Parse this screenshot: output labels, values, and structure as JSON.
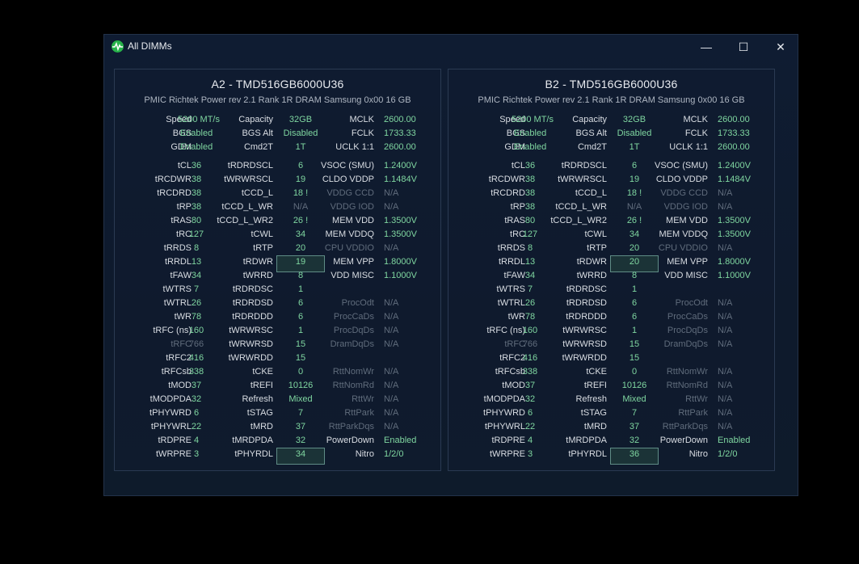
{
  "window": {
    "title": "All DIMMs",
    "minimize": "—",
    "maximize": "☐",
    "close": "✕"
  },
  "panels": [
    {
      "title": "A2  -  TMD516GB6000U36",
      "subtitle": "PMIC Richtek Power rev 2.1    Rank 1R    DRAM Samsung 0x00    16 GB",
      "top": [
        [
          "Speed",
          "5200 MT/s",
          "Capacity",
          "32GB",
          "MCLK",
          "2600.00"
        ],
        [
          "BGS",
          "Enabled",
          "BGS Alt",
          "Disabled",
          "FCLK",
          "1733.33"
        ],
        [
          "GDM",
          "Enabled",
          "Cmd2T",
          "1T",
          "UCLK  1:1",
          "2600.00"
        ]
      ],
      "rows": [
        [
          "tCL",
          "36",
          "tRDRDSCL",
          "6",
          "VSOC (SMU)",
          "1.2400V"
        ],
        [
          "tRCDWR",
          "38",
          "tWRWRSCL",
          "19",
          "CLDO VDDP",
          "1.1484V"
        ],
        [
          "tRCDRD",
          "38",
          "tCCD_L",
          "18 !",
          "VDDG CCD",
          "N/A"
        ],
        [
          "tRP",
          "38",
          "tCCD_L_WR",
          "N/A",
          "VDDG IOD",
          "N/A"
        ],
        [
          "tRAS",
          "80",
          "tCCD_L_WR2",
          "26 !",
          "MEM VDD",
          "1.3500V"
        ],
        [
          "tRC",
          "127",
          "tCWL",
          "34",
          "MEM VDDQ",
          "1.3500V"
        ],
        [
          "tRRDS",
          "8",
          "tRTP",
          "20",
          "CPU VDDIO",
          "N/A"
        ],
        [
          "tRRDL",
          "13",
          "tRDWR",
          "19",
          "MEM VPP",
          "1.8000V"
        ],
        [
          "tFAW",
          "34",
          "tWRRD",
          "8",
          "VDD MISC",
          "1.1000V"
        ],
        [
          "tWTRS",
          "7",
          "tRDRDSC",
          "1",
          "",
          ""
        ],
        [
          "tWTRL",
          "26",
          "tRDRDSD",
          "6",
          "ProcOdt",
          "N/A"
        ],
        [
          "tWR",
          "78",
          "tRDRDDD",
          "6",
          "ProcCaDs",
          "N/A"
        ],
        [
          "tRFC (ns)",
          "160",
          "tWRWRSC",
          "1",
          "ProcDqDs",
          "N/A"
        ],
        [
          "tRFC",
          "766",
          "tWRWRSD",
          "15",
          "DramDqDs",
          "N/A"
        ],
        [
          "tRFC2",
          "416",
          "tWRWRDD",
          "15",
          "",
          ""
        ],
        [
          "tRFCsb",
          "338",
          "tCKE",
          "0",
          "RttNomWr",
          "N/A"
        ],
        [
          "tMOD",
          "37",
          "tREFI",
          "10126",
          "RttNomRd",
          "N/A"
        ],
        [
          "tMODPDA",
          "32",
          "Refresh",
          "Mixed",
          "RttWr",
          "N/A"
        ],
        [
          "tPHYWRD",
          "6",
          "tSTAG",
          "7",
          "RttPark",
          "N/A"
        ],
        [
          "tPHYWRL",
          "22",
          "tMRD",
          "37",
          "RttParkDqs",
          "N/A"
        ],
        [
          "tRDPRE",
          "4",
          "tMRDPDA",
          "32",
          "PowerDown",
          "Enabled"
        ],
        [
          "tWRPRE",
          "3",
          "tPHYRDL",
          "34",
          "Nitro",
          "1/2/0"
        ]
      ]
    },
    {
      "title": "B2  -  TMD516GB6000U36",
      "subtitle": "PMIC Richtek Power rev 2.1    Rank 1R    DRAM Samsung 0x00    16 GB",
      "top": [
        [
          "Speed",
          "5200 MT/s",
          "Capacity",
          "32GB",
          "MCLK",
          "2600.00"
        ],
        [
          "BGS",
          "Enabled",
          "BGS Alt",
          "Disabled",
          "FCLK",
          "1733.33"
        ],
        [
          "GDM",
          "Enabled",
          "Cmd2T",
          "1T",
          "UCLK  1:1",
          "2600.00"
        ]
      ],
      "rows": [
        [
          "tCL",
          "36",
          "tRDRDSCL",
          "6",
          "VSOC (SMU)",
          "1.2400V"
        ],
        [
          "tRCDWR",
          "38",
          "tWRWRSCL",
          "19",
          "CLDO VDDP",
          "1.1484V"
        ],
        [
          "tRCDRD",
          "38",
          "tCCD_L",
          "18 !",
          "VDDG CCD",
          "N/A"
        ],
        [
          "tRP",
          "38",
          "tCCD_L_WR",
          "N/A",
          "VDDG IOD",
          "N/A"
        ],
        [
          "tRAS",
          "80",
          "tCCD_L_WR2",
          "26 !",
          "MEM VDD",
          "1.3500V"
        ],
        [
          "tRC",
          "127",
          "tCWL",
          "34",
          "MEM VDDQ",
          "1.3500V"
        ],
        [
          "tRRDS",
          "8",
          "tRTP",
          "20",
          "CPU VDDIO",
          "N/A"
        ],
        [
          "tRRDL",
          "13",
          "tRDWR",
          "20",
          "MEM VPP",
          "1.8000V"
        ],
        [
          "tFAW",
          "34",
          "tWRRD",
          "8",
          "VDD MISC",
          "1.1000V"
        ],
        [
          "tWTRS",
          "7",
          "tRDRDSC",
          "1",
          "",
          ""
        ],
        [
          "tWTRL",
          "26",
          "tRDRDSD",
          "6",
          "ProcOdt",
          "N/A"
        ],
        [
          "tWR",
          "78",
          "tRDRDDD",
          "6",
          "ProcCaDs",
          "N/A"
        ],
        [
          "tRFC (ns)",
          "160",
          "tWRWRSC",
          "1",
          "ProcDqDs",
          "N/A"
        ],
        [
          "tRFC",
          "766",
          "tWRWRSD",
          "15",
          "DramDqDs",
          "N/A"
        ],
        [
          "tRFC2",
          "416",
          "tWRWRDD",
          "15",
          "",
          ""
        ],
        [
          "tRFCsb",
          "338",
          "tCKE",
          "0",
          "RttNomWr",
          "N/A"
        ],
        [
          "tMOD",
          "37",
          "tREFI",
          "10126",
          "RttNomRd",
          "N/A"
        ],
        [
          "tMODPDA",
          "32",
          "Refresh",
          "Mixed",
          "RttWr",
          "N/A"
        ],
        [
          "tPHYWRD",
          "6",
          "tSTAG",
          "7",
          "RttPark",
          "N/A"
        ],
        [
          "tPHYWRL",
          "22",
          "tMRD",
          "37",
          "RttParkDqs",
          "N/A"
        ],
        [
          "tRDPRE",
          "4",
          "tMRDPDA",
          "32",
          "PowerDown",
          "Enabled"
        ],
        [
          "tWRPRE",
          "3",
          "tPHYRDL",
          "36",
          "Nitro",
          "1/2/0"
        ]
      ]
    }
  ],
  "dim_labels": [
    "tRFC",
    "VDDG CCD",
    "VDDG IOD",
    "CPU VDDIO",
    "ProcOdt",
    "ProcCaDs",
    "ProcDqDs",
    "DramDqDs",
    "RttNomWr",
    "RttNomRd",
    "RttWr",
    "RttPark",
    "RttParkDqs"
  ],
  "dim_values": [
    "766"
  ],
  "highlighted": [
    "tRDWR",
    "tPHYRDL"
  ],
  "colors": {
    "value": "#7fd6a0",
    "label": "#d9dde3",
    "dim": "#606c7c",
    "highlight_border": "#5f8c86"
  }
}
